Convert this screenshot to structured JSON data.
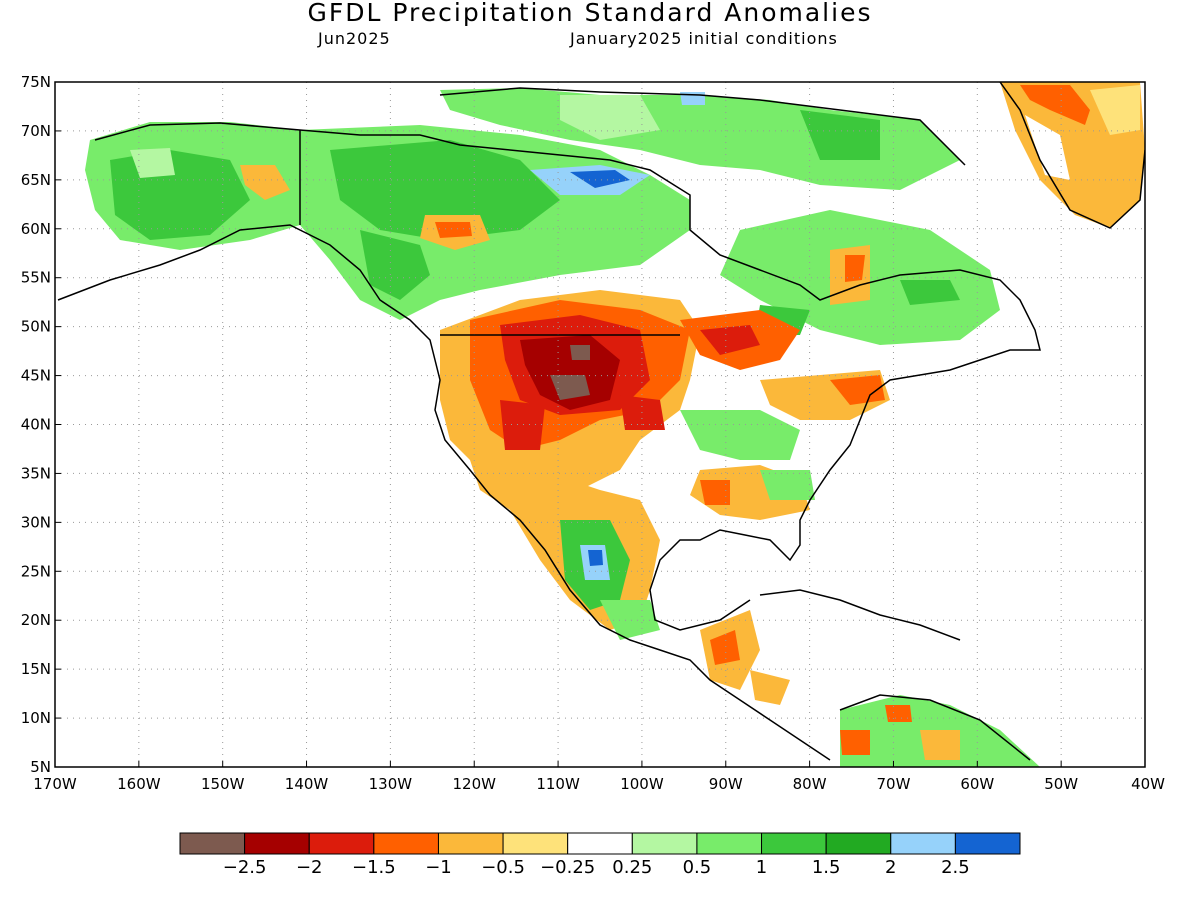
{
  "title": "GFDL Precipitation Standard Anomalies",
  "subtitle_left": "Jun2025",
  "subtitle_right": "January2025 initial conditions",
  "map": {
    "region": "North America",
    "lon_range": [
      -170,
      -40
    ],
    "lat_range": [
      5,
      75
    ],
    "gridlines": "dotted",
    "lat_labels": [
      "75N",
      "70N",
      "65N",
      "60N",
      "55N",
      "50N",
      "45N",
      "40N",
      "35N",
      "30N",
      "25N",
      "20N",
      "15N",
      "10N",
      "5N"
    ],
    "lon_labels": [
      "170W",
      "160W",
      "150W",
      "140W",
      "130W",
      "120W",
      "110W",
      "100W",
      "90W",
      "80W",
      "70W",
      "60W",
      "50W",
      "40W"
    ]
  },
  "colorbar": {
    "colors": [
      "#7d5a4f",
      "#a50000",
      "#dc1c0c",
      "#ff6000",
      "#fbb83a",
      "#fee27a",
      "#ffffff",
      "#b4f7a2",
      "#78ec6a",
      "#3cc83c",
      "#22aa22",
      "#96d2fa",
      "#1464d2"
    ],
    "tick_labels": [
      "-2.5",
      "-2",
      "-1.5",
      "-1",
      "-0.5",
      "-0.25",
      "0.25",
      "0.5",
      "1",
      "1.5",
      "2",
      "2.5"
    ]
  }
}
